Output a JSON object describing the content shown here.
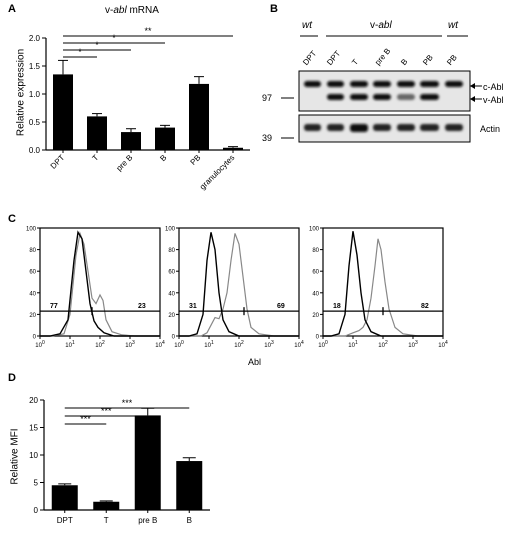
{
  "panel_letters": [
    "A",
    "B",
    "C",
    "D"
  ],
  "chart_data": [
    {
      "id": "A",
      "type": "bar",
      "title_prefix": "v-",
      "title_italic": "abl",
      "title_suffix": " mRNA",
      "ylabel": "Relative expression",
      "categories": [
        "DPT",
        "T",
        "pre B",
        "B",
        "PB",
        "granulocytes"
      ],
      "values": [
        1.35,
        0.6,
        0.32,
        0.4,
        1.18,
        0.04
      ],
      "errors": [
        0.25,
        0.05,
        0.06,
        0.04,
        0.13,
        0.02
      ],
      "ylim": [
        0,
        2.0
      ],
      "yticks": [
        "0.0",
        "0.5",
        "1.0",
        "1.5",
        "2.0"
      ],
      "significance": [
        {
          "from": 0,
          "to": 1,
          "label": "*"
        },
        {
          "from": 0,
          "to": 2,
          "label": "*"
        },
        {
          "from": 0,
          "to": 3,
          "label": "*"
        },
        {
          "from": 0,
          "to": 5,
          "label": "**"
        }
      ]
    },
    {
      "id": "D",
      "type": "bar",
      "ylabel": "Relative MFI",
      "categories": [
        "DPT",
        "T",
        "pre B",
        "B"
      ],
      "values": [
        4.5,
        1.5,
        17.2,
        8.9
      ],
      "errors": [
        0.25,
        0.15,
        1.3,
        0.6
      ],
      "ylim": [
        0,
        20
      ],
      "yticks": [
        "0",
        "5",
        "10",
        "15",
        "20"
      ],
      "significance": [
        {
          "from": 0,
          "to": 1,
          "label": "***"
        },
        {
          "from": 0,
          "to": 2,
          "label": "***"
        },
        {
          "from": 0,
          "to": 3,
          "label": "***"
        }
      ]
    }
  ],
  "blot": {
    "header_wt_left": "wt",
    "header_vabl_prefix": "v-",
    "header_vabl_italic": "abl",
    "header_wt_right": "wt",
    "lanes": [
      "DPT",
      "DPT",
      "T",
      "pre B",
      "B",
      "PB",
      "PB"
    ],
    "mw_97": "97",
    "mw_39": "39",
    "label_cabl": "c-Abl",
    "label_vabl": "v-Abl",
    "label_actin": "Actin"
  },
  "flow": {
    "xlabel": "Abl",
    "yticks": [
      "0",
      "20",
      "40",
      "60",
      "80",
      "100"
    ],
    "xticks_exp": [
      "0",
      "1",
      "2",
      "3",
      "4"
    ],
    "xtick_base": "10",
    "plots": [
      {
        "left_pct": "77",
        "right_pct": "23"
      },
      {
        "left_pct": "31",
        "right_pct": "69"
      },
      {
        "left_pct": "18",
        "right_pct": "82"
      }
    ]
  }
}
